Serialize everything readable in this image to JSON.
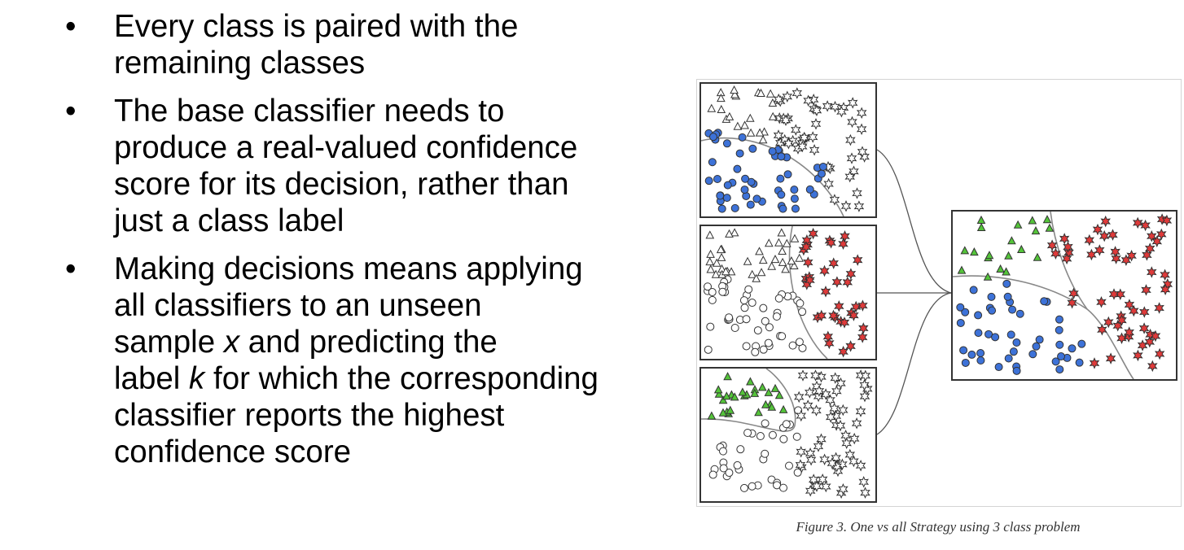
{
  "bullets": [
    {
      "lines": [
        "Every class is paired with the",
        "remaining classes"
      ]
    },
    {
      "lines": [
        "The base classifier needs to",
        "produce a real-valued confidence",
        "score for its decision, rather than",
        "just a class label"
      ]
    },
    {
      "lines": [
        "Making decisions means applying",
        "all classifiers to an unseen"
      ]
    }
  ],
  "bullet3_rest": {
    "l3_pre": "sample ",
    "l3_var": "x",
    "l3_post": " and predicting the",
    "l4_pre": "label ",
    "l4_var": "k",
    "l4_post": " for which the corresponding",
    "l5": "classifier reports the highest",
    "l6": "confidence score"
  },
  "figure": {
    "caption": "Figure 3. One vs all Strategy using 3 class problem",
    "colors": {
      "blue": "#3d72d8",
      "red": "#e03a3a",
      "green": "#54c43a",
      "outline": "#333333"
    },
    "icons": [
      "triangle-icon",
      "star-icon",
      "circle-icon"
    ]
  }
}
